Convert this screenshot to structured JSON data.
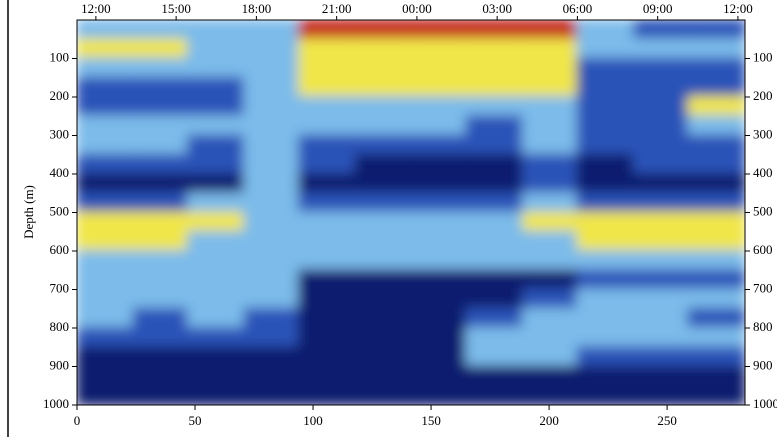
{
  "chart_data": {
    "type": "heatmap",
    "ylabel": "Depth (m)",
    "xlim": [
      0,
      283
    ],
    "ylim": [
      0,
      1000
    ],
    "y_inverted": true,
    "xticks": [
      0,
      50,
      100,
      150,
      200,
      250
    ],
    "yticks": [
      100,
      200,
      300,
      400,
      500,
      600,
      700,
      800,
      900,
      1000
    ],
    "x2ticks": [
      {
        "value": 8,
        "label": "12:00"
      },
      {
        "value": 42,
        "label": "15:00"
      },
      {
        "value": 76,
        "label": "18:00"
      },
      {
        "value": 110,
        "label": "21:00"
      },
      {
        "value": 144,
        "label": "00:00"
      },
      {
        "value": 178,
        "label": "03:00"
      },
      {
        "value": 212,
        "label": "06:00"
      },
      {
        "value": 246,
        "label": "09:00"
      },
      {
        "value": 280,
        "label": "12:00"
      }
    ],
    "colorscale": [
      "#0b1a6e",
      "#2c52b8",
      "#7cbbea",
      "#f0e64a",
      "#c4261c"
    ],
    "x_bins": [
      0,
      24,
      47,
      71,
      94,
      118,
      142,
      165,
      189,
      212,
      236,
      259,
      283
    ],
    "y_bins": [
      0,
      50,
      100,
      150,
      200,
      250,
      300,
      350,
      400,
      450,
      500,
      550,
      600,
      650,
      700,
      750,
      800,
      850,
      900,
      950,
      1000
    ],
    "z": [
      [
        2,
        2,
        2,
        2,
        4,
        4,
        4,
        4,
        4,
        2,
        1,
        1
      ],
      [
        3,
        3,
        2,
        2,
        3,
        3,
        3,
        3,
        3,
        2,
        2,
        2
      ],
      [
        2,
        2,
        2,
        2,
        3,
        3,
        3,
        3,
        3,
        1,
        1,
        1
      ],
      [
        1,
        1,
        1,
        2,
        3,
        3,
        3,
        3,
        3,
        1,
        1,
        1
      ],
      [
        1,
        1,
        1,
        2,
        2,
        2,
        2,
        2,
        2,
        1,
        1,
        3
      ],
      [
        2,
        2,
        2,
        2,
        2,
        2,
        2,
        1,
        2,
        1,
        1,
        2
      ],
      [
        2,
        2,
        1,
        2,
        1,
        1,
        1,
        1,
        2,
        1,
        1,
        1
      ],
      [
        1,
        1,
        1,
        2,
        1,
        0,
        0,
        0,
        1,
        0,
        1,
        1
      ],
      [
        0,
        0,
        0,
        2,
        0,
        0,
        0,
        0,
        1,
        0,
        0,
        0
      ],
      [
        1,
        1,
        2,
        2,
        1,
        1,
        1,
        1,
        2,
        1,
        1,
        1
      ],
      [
        3,
        3,
        3,
        2,
        2,
        2,
        2,
        2,
        3,
        3,
        3,
        3
      ],
      [
        3,
        3,
        2,
        2,
        2,
        2,
        2,
        2,
        2,
        3,
        3,
        3
      ],
      [
        2,
        2,
        2,
        2,
        2,
        2,
        2,
        2,
        2,
        2,
        2,
        2
      ],
      [
        2,
        2,
        2,
        2,
        0,
        0,
        0,
        0,
        0,
        1,
        1,
        1
      ],
      [
        2,
        2,
        2,
        2,
        0,
        0,
        0,
        0,
        1,
        2,
        2,
        2
      ],
      [
        2,
        1,
        2,
        1,
        0,
        0,
        0,
        1,
        2,
        2,
        2,
        1
      ],
      [
        1,
        1,
        1,
        1,
        0,
        0,
        0,
        2,
        2,
        2,
        2,
        2
      ],
      [
        0,
        0,
        0,
        0,
        0,
        0,
        0,
        2,
        2,
        1,
        1,
        1
      ],
      [
        0,
        0,
        0,
        0,
        0,
        0,
        0,
        0,
        0,
        0,
        0,
        0
      ],
      [
        0,
        0,
        0,
        0,
        0,
        0,
        0,
        0,
        0,
        0,
        0,
        0
      ]
    ]
  }
}
